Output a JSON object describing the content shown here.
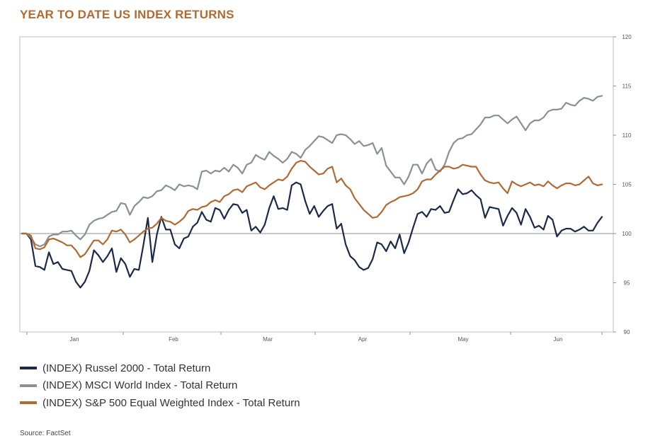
{
  "chart_data": {
    "type": "line",
    "title": "YEAR TO DATE US INDEX RETURNS",
    "source": "Source: FactSet",
    "x_axis": {
      "tick_labels": [
        "Jan",
        "Feb",
        "Mar",
        "Apr",
        "May",
        "Jun"
      ]
    },
    "y_axis": {
      "ylim": [
        90,
        120
      ],
      "ticks": [
        90,
        95,
        100,
        105,
        110,
        115,
        120
      ],
      "side": "right"
    },
    "reference_line": 100,
    "grid": false,
    "legend_position": "bottom-left",
    "series": [
      {
        "name": "(INDEX) Russel 2000 - Total Return",
        "color": "#1b2a48",
        "values": [
          100,
          100,
          99.4,
          96.7,
          96.6,
          96.3,
          98.1,
          96.9,
          97.1,
          96.4,
          96.3,
          96.2,
          95.1,
          94.5,
          95.1,
          96.2,
          98.3,
          97.8,
          97.1,
          97.7,
          98.5,
          96.1,
          97.5,
          96.9,
          95.6,
          96.4,
          96.3,
          98.8,
          101.6,
          97.1,
          99.9,
          101.7,
          100.4,
          100.4,
          98.9,
          98.5,
          99.5,
          99.7,
          100.7,
          101.1,
          102.2,
          101.4,
          101.2,
          102.6,
          102.4,
          101.5,
          102.4,
          103.0,
          102.9,
          102.1,
          102.4,
          100.3,
          100.7,
          100.1,
          100.9,
          102.6,
          103.8,
          102.5,
          102.6,
          102.4,
          104.9,
          105.2,
          105.0,
          103.3,
          102.0,
          102.8,
          101.7,
          102.3,
          102.8,
          103.0,
          100.5,
          101.0,
          98.9,
          97.7,
          97.3,
          96.6,
          96.3,
          96.5,
          97.4,
          99.1,
          98.9,
          98.2,
          99.2,
          98.5,
          99.9,
          98.0,
          99.1,
          100.6,
          102.0,
          102.2,
          101.7,
          102.5,
          102.4,
          102.8,
          102.1,
          102.2,
          103.4,
          104.5,
          104.0,
          104.1,
          104.4,
          103.9,
          103.5,
          101.6,
          102.7,
          102.6,
          102.5,
          100.8,
          101.8,
          102.6,
          102.1,
          100.9,
          102.5,
          101.7,
          100.6,
          100.8,
          100.4,
          101.8,
          101.4,
          99.7,
          100.3,
          100.5,
          100.5,
          100.2,
          100.4,
          100.7,
          100.3,
          100.3,
          101.1,
          101.7
        ]
      },
      {
        "name": "(INDEX) MSCI World Index - Total Return",
        "color": "#8c8f94",
        "values": [
          100,
          100,
          99.6,
          98.9,
          98.7,
          98.9,
          99.7,
          99.9,
          99.9,
          100.2,
          100.2,
          100.3,
          99.8,
          99.4,
          99.9,
          100.9,
          101.3,
          101.5,
          101.6,
          101.9,
          102.2,
          102.3,
          103.1,
          103.0,
          101.9,
          102.8,
          103.2,
          103.7,
          103.6,
          103.8,
          104.3,
          104.4,
          104.9,
          104.7,
          104.4,
          105.0,
          104.8,
          104.9,
          104.8,
          104.5,
          106.3,
          106.4,
          106.1,
          106.4,
          106.3,
          106.7,
          106.3,
          107.0,
          106.7,
          106.1,
          107.0,
          107.2,
          108.0,
          107.7,
          107.5,
          108.3,
          107.9,
          107.6,
          107.2,
          107.6,
          108.3,
          108.1,
          107.7,
          108.5,
          108.9,
          109.4,
          109.9,
          109.8,
          109.5,
          109.2,
          110.0,
          110.1,
          110.0,
          109.6,
          109.1,
          109.4,
          108.9,
          109.0,
          109.2,
          108.1,
          108.7,
          106.9,
          106.3,
          105.7,
          105.7,
          105.0,
          105.8,
          107.0,
          107.0,
          106.1,
          107.1,
          107.6,
          106.5,
          106.3,
          107.0,
          108.3,
          109.2,
          109.6,
          109.7,
          110.0,
          110.1,
          110.6,
          111.1,
          111.8,
          111.8,
          112.0,
          112.0,
          111.6,
          111.2,
          111.6,
          111.9,
          111.2,
          110.5,
          111.2,
          111.5,
          111.5,
          111.8,
          112.4,
          112.6,
          112.6,
          112.7,
          113.3,
          113.1,
          113.0,
          113.5,
          113.8,
          113.7,
          113.5,
          113.9,
          114.0
        ]
      },
      {
        "name": "(INDEX) S&P 500 Equal Weighted Index - Total Return",
        "color": "#b06a32",
        "values": [
          100,
          100,
          99.8,
          98.5,
          98.4,
          98.6,
          99.4,
          99.5,
          99.3,
          99.1,
          98.8,
          98.8,
          98.3,
          97.6,
          97.9,
          98.6,
          99.3,
          99.3,
          98.9,
          99.4,
          100.3,
          100.2,
          100.4,
          99.9,
          99.1,
          99.4,
          99.8,
          100.2,
          100.5,
          100.6,
          101.0,
          101.6,
          101.3,
          101.2,
          100.9,
          101.2,
          101.6,
          102.3,
          102.5,
          102.4,
          102.7,
          102.8,
          103.2,
          103.4,
          103.2,
          103.8,
          104.0,
          104.4,
          104.5,
          104.2,
          104.8,
          105.0,
          105.2,
          104.7,
          104.5,
          104.9,
          105.2,
          105.5,
          105.4,
          105.8,
          106.6,
          107.2,
          107.4,
          107.3,
          106.8,
          106.4,
          106.0,
          106.1,
          106.6,
          106.8,
          105.2,
          105.6,
          104.9,
          104.5,
          103.6,
          103.0,
          102.4,
          102.0,
          101.6,
          101.7,
          102.2,
          102.9,
          103.2,
          103.4,
          103.7,
          103.8,
          103.9,
          104.1,
          104.5,
          105.3,
          105.5,
          105.5,
          106.0,
          106.4,
          106.8,
          106.8,
          106.6,
          106.7,
          107.0,
          106.9,
          106.8,
          106.8,
          106.0,
          105.4,
          105.2,
          105.1,
          105.2,
          104.6,
          104.1,
          105.3,
          105.0,
          104.8,
          105.0,
          105.2,
          104.9,
          105.0,
          104.8,
          105.3,
          104.9,
          104.6,
          104.9,
          105.1,
          105.1,
          104.9,
          105.0,
          105.4,
          105.8,
          105.1,
          104.9,
          105.0
        ]
      }
    ]
  }
}
